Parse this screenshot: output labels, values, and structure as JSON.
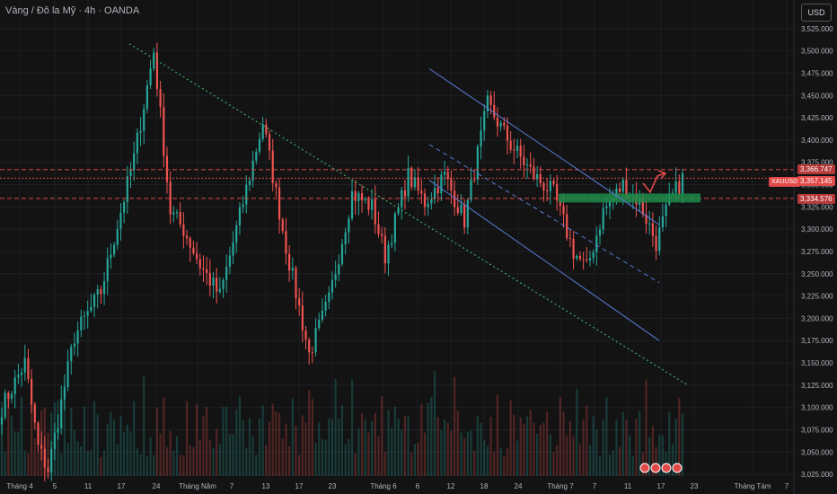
{
  "header": {
    "title": "Vàng / Đô la Mỹ · 4h · OANDA"
  },
  "currency_button": "USD",
  "price_tags": {
    "symbol": "XAUUSD",
    "upper": "3,366.747",
    "current": "3,357.145",
    "lower": "3,334.576"
  },
  "colors": {
    "up": "#26a69a",
    "down": "#ef5350",
    "bg": "#131313",
    "channel": "#5b7bd6",
    "trend": "#3fa86a",
    "level": "#e24a4a",
    "zone": "#1e8b4a"
  },
  "chart_data": {
    "type": "candlestick",
    "symbol": "XAUUSD",
    "timeframe": "4h",
    "ylim": [
      3015,
      3545
    ],
    "y_ticks": [
      "3,525.000",
      "3,500.000",
      "3,475.000",
      "3,450.000",
      "3,425.000",
      "3,400.000",
      "3,375.000",
      "3,350.000",
      "3,325.000",
      "3,300.000",
      "3,275.000",
      "3,250.000",
      "3,225.000",
      "3,200.000",
      "3,175.000",
      "3,150.000",
      "3,125.000",
      "3,100.000",
      "3,075.000",
      "3,050.000",
      "3,025.000"
    ],
    "x_ticks": [
      "Tháng 4",
      "5",
      "11",
      "17",
      "24",
      "Tháng Năm",
      "7",
      "13",
      "17",
      "23",
      "Tháng 6",
      "6",
      "12",
      "18",
      "24",
      "Tháng 7",
      "7",
      "11",
      "17",
      "23",
      "Tháng Tám",
      "7"
    ],
    "swing_path": [
      {
        "t": 0,
        "price": 3100
      },
      {
        "t": 7,
        "price": 3150
      },
      {
        "t": 11,
        "price": 3055
      },
      {
        "t": 14,
        "price": 3030
      },
      {
        "t": 22,
        "price": 3180
      },
      {
        "t": 30,
        "price": 3230
      },
      {
        "t": 40,
        "price": 3380
      },
      {
        "t": 46,
        "price": 3500
      },
      {
        "t": 51,
        "price": 3320
      },
      {
        "t": 55,
        "price": 3300
      },
      {
        "t": 60,
        "price": 3260
      },
      {
        "t": 66,
        "price": 3225
      },
      {
        "t": 73,
        "price": 3330
      },
      {
        "t": 79,
        "price": 3420
      },
      {
        "t": 86,
        "price": 3280
      },
      {
        "t": 93,
        "price": 3160
      },
      {
        "t": 99,
        "price": 3220
      },
      {
        "t": 106,
        "price": 3340
      },
      {
        "t": 112,
        "price": 3325
      },
      {
        "t": 116,
        "price": 3270
      },
      {
        "t": 123,
        "price": 3360
      },
      {
        "t": 128,
        "price": 3330
      },
      {
        "t": 134,
        "price": 3360
      },
      {
        "t": 140,
        "price": 3310
      },
      {
        "t": 147,
        "price": 3440
      },
      {
        "t": 154,
        "price": 3395
      },
      {
        "t": 161,
        "price": 3360
      },
      {
        "t": 167,
        "price": 3340
      },
      {
        "t": 173,
        "price": 3275
      },
      {
        "t": 177,
        "price": 3255
      },
      {
        "t": 182,
        "price": 3320
      },
      {
        "t": 188,
        "price": 3350
      },
      {
        "t": 193,
        "price": 3330
      },
      {
        "t": 198,
        "price": 3285
      },
      {
        "t": 202,
        "price": 3330
      },
      {
        "t": 206,
        "price": 3357
      }
    ],
    "levels": [
      3366.747,
      3357.145,
      3334.576
    ],
    "zone": [
      3330,
      3340
    ],
    "trendline": [
      {
        "date": "Tháng 4 / 17",
        "price": 3508
      },
      {
        "date": "Tháng 7 / 17",
        "price": 3125
      }
    ],
    "channel": {
      "upper": [
        {
          "date": "Tháng 6 / 6",
          "price": 3480
        },
        {
          "date": "Tháng 7 / 17",
          "price": 3305
        }
      ],
      "middle": [
        {
          "date": "Tháng 6 / 6",
          "price": 3395
        },
        {
          "date": "Tháng 7 / 17",
          "price": 3240
        }
      ],
      "lower": [
        {
          "date": "Tháng 6 / 6",
          "price": 3355
        },
        {
          "date": "Tháng 7 / 17",
          "price": 3175
        }
      ]
    }
  }
}
